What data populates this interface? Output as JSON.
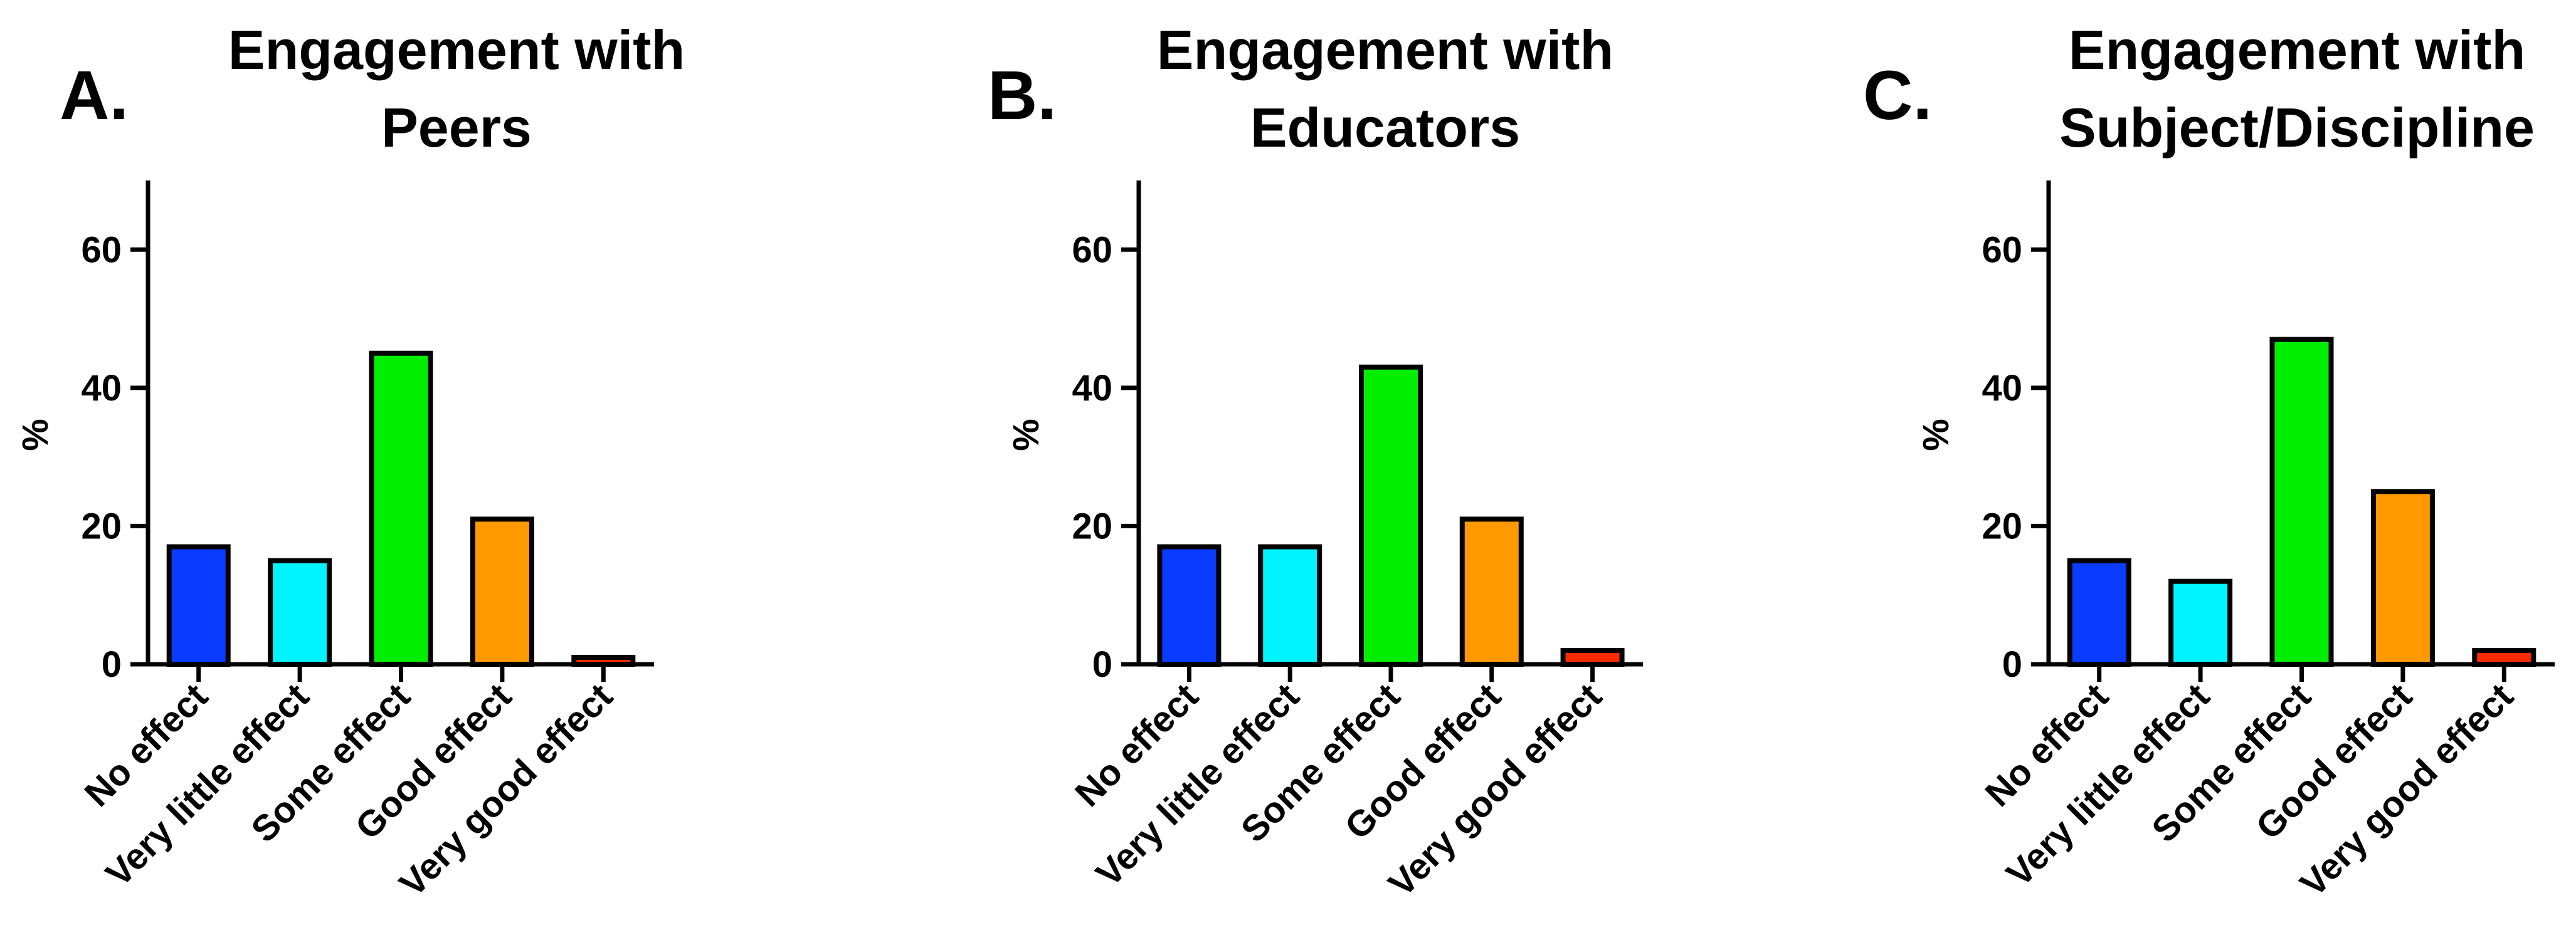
{
  "chart_data": [
    {
      "type": "bar",
      "panel_label": "A.",
      "title": [
        "Engagement with",
        "Peers"
      ],
      "y_label": "%",
      "categories": [
        "No effect",
        "Very little effect",
        "Some effect",
        "Good effect",
        "Very good effect"
      ],
      "values": [
        17,
        15,
        45,
        21,
        1
      ],
      "colors": [
        "#0a3cff",
        "#00f4ff",
        "#00ee00",
        "#ff9900",
        "#ff2a00"
      ],
      "ylim": [
        0,
        70
      ],
      "yticks": [
        0,
        20,
        40,
        60
      ]
    },
    {
      "type": "bar",
      "panel_label": "B.",
      "title": [
        "Engagement with",
        "Educators"
      ],
      "y_label": "%",
      "categories": [
        "No effect",
        "Very little effect",
        "Some effect",
        "Good effect",
        "Very good effect"
      ],
      "values": [
        17,
        17,
        43,
        21,
        2
      ],
      "colors": [
        "#0a3cff",
        "#00f4ff",
        "#00ee00",
        "#ff9900",
        "#ff2a00"
      ],
      "ylim": [
        0,
        70
      ],
      "yticks": [
        0,
        20,
        40,
        60
      ]
    },
    {
      "type": "bar",
      "panel_label": "C.",
      "title": [
        "Engagement with",
        "Subject/Discipline"
      ],
      "y_label": "%",
      "categories": [
        "No effect",
        "Very little effect",
        "Some effect",
        "Good effect",
        "Very good effect"
      ],
      "values": [
        15,
        12,
        47,
        25,
        2
      ],
      "colors": [
        "#0a3cff",
        "#00f4ff",
        "#00ee00",
        "#ff9900",
        "#ff2a00"
      ],
      "ylim": [
        0,
        70
      ],
      "yticks": [
        0,
        20,
        40,
        60
      ]
    }
  ]
}
